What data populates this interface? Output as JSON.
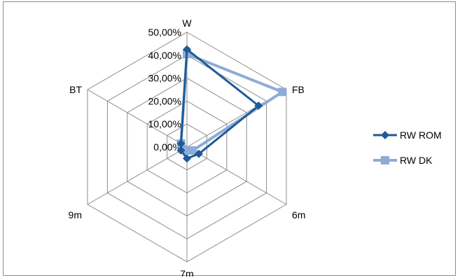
{
  "chart_data": {
    "type": "radar",
    "title": "",
    "axes": [
      "W",
      "FB",
      "6m",
      "7m",
      "9m",
      "BT"
    ],
    "rlim": [
      0,
      50
    ],
    "radial_ticks": [
      "0,00%",
      "10,00%",
      "20,00%",
      "30,00%",
      "40,00%",
      "50,00%"
    ],
    "legend_position": "right",
    "series": [
      {
        "name": "RW ROM",
        "color": "#1f5b96",
        "marker": "diamond",
        "values": [
          42.5,
          36,
          6,
          5,
          3,
          3
        ]
      },
      {
        "name": "RW DK",
        "color": "#8eabd6",
        "marker": "square",
        "values": [
          40.5,
          48,
          3,
          1.5,
          2,
          3
        ]
      }
    ]
  }
}
